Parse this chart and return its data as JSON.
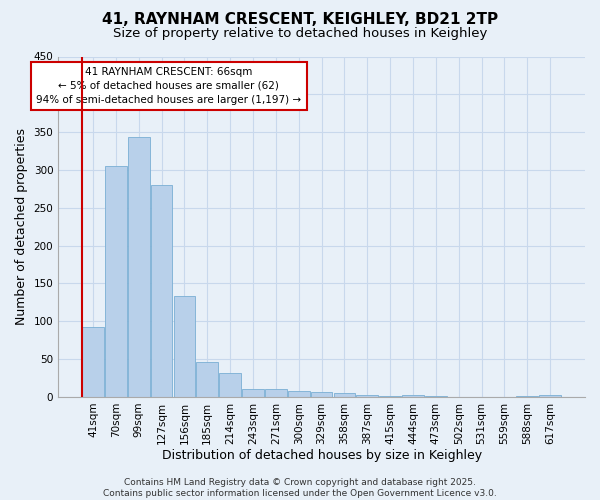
{
  "title": "41, RAYNHAM CRESCENT, KEIGHLEY, BD21 2TP",
  "subtitle": "Size of property relative to detached houses in Keighley",
  "xlabel": "Distribution of detached houses by size in Keighley",
  "ylabel": "Number of detached properties",
  "categories": [
    "41sqm",
    "70sqm",
    "99sqm",
    "127sqm",
    "156sqm",
    "185sqm",
    "214sqm",
    "243sqm",
    "271sqm",
    "300sqm",
    "329sqm",
    "358sqm",
    "387sqm",
    "415sqm",
    "444sqm",
    "473sqm",
    "502sqm",
    "531sqm",
    "559sqm",
    "588sqm",
    "617sqm"
  ],
  "values": [
    93,
    305,
    343,
    280,
    133,
    46,
    32,
    10,
    11,
    8,
    6,
    5,
    3,
    1,
    2,
    1,
    0,
    0,
    0,
    1,
    2
  ],
  "bar_color": "#b8d0ea",
  "bar_edge_color": "#7aafd4",
  "grid_color": "#c8d8ec",
  "background_color": "#e8f0f8",
  "annotation_line1": "41 RAYNHAM CRESCENT: 66sqm",
  "annotation_line2": "← 5% of detached houses are smaller (62)",
  "annotation_line3": "94% of semi-detached houses are larger (1,197) →",
  "annotation_box_color": "#ffffff",
  "annotation_box_edge": "#cc0000",
  "vline_color": "#cc0000",
  "ylim": [
    0,
    450
  ],
  "yticks": [
    0,
    50,
    100,
    150,
    200,
    250,
    300,
    350,
    400,
    450
  ],
  "footer": "Contains HM Land Registry data © Crown copyright and database right 2025.\nContains public sector information licensed under the Open Government Licence v3.0.",
  "title_fontsize": 11,
  "subtitle_fontsize": 9.5,
  "axis_label_fontsize": 9,
  "tick_fontsize": 7.5,
  "annotation_fontsize": 7.5,
  "footer_fontsize": 6.5
}
